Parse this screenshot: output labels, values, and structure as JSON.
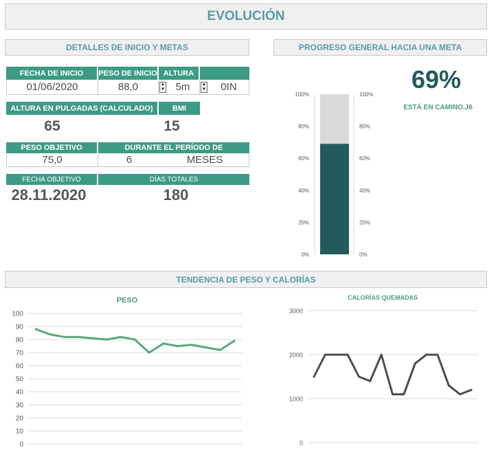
{
  "title": "EVOLUCIÓN",
  "details": {
    "header": "DETALLES DE INICIO Y METAS",
    "start_date_label": "FECHA DE INICIO",
    "start_weight_label": "PESO DE INICIO",
    "height_label": "ALTURA",
    "start_date": "01/06/2020",
    "start_weight": "88,0",
    "height_m": "5m",
    "height_in": "0IN",
    "height_inches_label": "ALTURA EN PULGADAS (CALCULADO)",
    "bmi_label": "BMI",
    "height_inches": "65",
    "bmi": "15",
    "target_weight_label": "PESO OBJETIVO",
    "period_label": "DURANTE EL PERÍODO DE",
    "target_weight": "75,0",
    "period_value": "6",
    "period_unit": "MESES",
    "target_date_label": "FECHA OBJETIVO",
    "total_days_label": "DÍAS TOTALES",
    "target_date": "28.11.2020",
    "total_days": "180"
  },
  "progress": {
    "header": "PROGRESO GENERAL HACIA UNA META",
    "percent_text": "69%",
    "status": "ESTÁ EN CAMINO.J6",
    "value": 0.69,
    "ticks": [
      "0%",
      "20%",
      "40%",
      "60%",
      "80%",
      "100%"
    ],
    "fill_color": "#235b5b",
    "bg_color": "#d9d9d9"
  },
  "trend_header": "TENDENCIA DE  PESO Y CALORÍAS",
  "chart_data": [
    {
      "type": "line",
      "title": "PESO",
      "ylim": [
        0,
        100
      ],
      "yticks": [
        "0",
        "10",
        "20",
        "30",
        "40",
        "50",
        "60",
        "70",
        "80",
        "90",
        "100"
      ],
      "values": [
        88,
        84,
        82,
        82,
        81,
        80,
        82,
        80,
        70,
        77,
        75,
        76,
        74,
        72,
        79
      ],
      "color": "#5aa77c"
    },
    {
      "type": "line",
      "title": "CALORÍAS QUEMADAS",
      "ylim": [
        0,
        3000
      ],
      "yticks": [
        "0",
        "1000",
        "2000",
        "3000"
      ],
      "values": [
        1500,
        2000,
        2000,
        2000,
        1500,
        1400,
        2000,
        1100,
        1100,
        1800,
        2000,
        2000,
        1300,
        1100,
        1200
      ],
      "color": "#4d4d4d"
    }
  ]
}
